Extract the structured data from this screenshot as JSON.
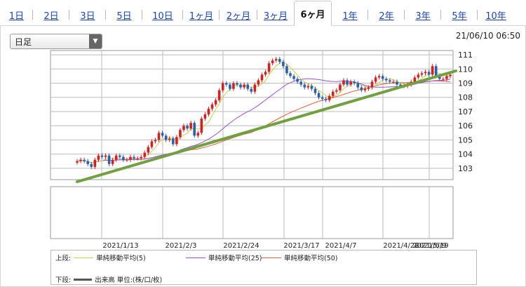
{
  "tabs": [
    {
      "label": "1日",
      "active": false
    },
    {
      "label": "2日",
      "active": false
    },
    {
      "label": "3日",
      "active": false
    },
    {
      "label": "5日",
      "active": false
    },
    {
      "label": "10日",
      "active": false
    },
    {
      "label": "1ヶ月",
      "active": false
    },
    {
      "label": "2ヶ月",
      "active": false
    },
    {
      "label": "3ヶ月",
      "active": false
    },
    {
      "label": "6ヶ月",
      "active": true
    },
    {
      "label": "1年",
      "active": false
    },
    {
      "label": "2年",
      "active": false
    },
    {
      "label": "3年",
      "active": false
    },
    {
      "label": "5年",
      "active": false
    },
    {
      "label": "10年",
      "active": false
    }
  ],
  "period_select": {
    "value": "日足"
  },
  "timestamp": "21/06/10 06:50",
  "legend": {
    "upper_label": "上段:",
    "ma5": "単純移動平均(5)",
    "ma25": "単純移動平均(25)",
    "ma50": "単純移動平均(50)",
    "lower_label": "下段:",
    "volume": "出来高 単位:(株/口/枚)"
  },
  "colors": {
    "ma5": "#c8d24a",
    "ma25": "#9b4fd0",
    "ma50": "#e0603a",
    "up": "#d42020",
    "down": "#2a5fb0",
    "trendline": "#70a040",
    "volume": "#555555"
  },
  "chart_data": {
    "type": "candlestick",
    "xlabels": [
      "2021/1/13",
      "2021/2/3",
      "2021/2/24",
      "2021/3/17",
      "2021/4/7",
      "2021/4/28",
      "2021/5/19",
      "2021/6/9"
    ],
    "yticks": [
      103,
      104,
      105,
      106,
      107,
      108,
      109,
      110,
      111
    ],
    "ylim": [
      102.2,
      111.3
    ],
    "grid": true,
    "close": [
      103.5,
      103.6,
      103.5,
      103.3,
      103.1,
      103.6,
      103.9,
      103.8,
      103.9,
      103.3,
      103.6,
      103.9,
      103.8,
      103.6,
      103.6,
      103.8,
      103.7,
      103.7,
      103.8,
      104.1,
      104.5,
      104.9,
      105.0,
      105.5,
      105.3,
      105.0,
      105.1,
      104.7,
      105.2,
      105.7,
      106.0,
      105.8,
      106.2,
      105.3,
      105.5,
      106.5,
      106.8,
      107.2,
      107.5,
      107.8,
      108.5,
      109.0,
      108.9,
      108.6,
      109.0,
      108.9,
      108.7,
      108.9,
      108.6,
      108.4,
      108.9,
      109.2,
      109.6,
      109.8,
      110.4,
      110.6,
      110.7,
      110.5,
      110.2,
      109.7,
      109.5,
      109.3,
      109.1,
      108.9,
      108.7,
      108.8,
      108.6,
      108.3,
      108.0,
      107.9,
      107.8,
      108.1,
      108.4,
      108.5,
      108.9,
      109.2,
      108.9,
      109.1,
      109.0,
      108.7,
      108.5,
      108.6,
      108.7,
      109.1,
      109.4,
      109.5,
      109.3,
      109.2,
      109.1,
      109.1,
      108.9,
      108.8,
      108.8,
      108.9,
      109.1,
      109.4,
      109.6,
      109.7,
      109.8,
      109.6,
      110.2,
      109.5,
      109.3,
      109.3,
      109.5,
      109.6
    ]
  }
}
